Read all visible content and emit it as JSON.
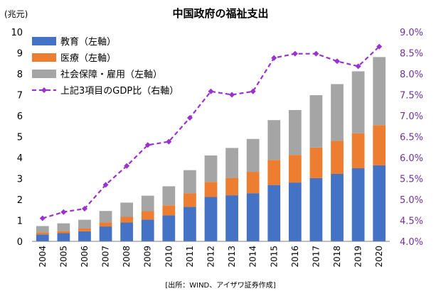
{
  "chart_data": {
    "type": "bar",
    "stacked": true,
    "title": "中国政府の福祉支出",
    "yunit_left": "(兆元)",
    "source": "[出所：WIND、アイザワ証券作成]",
    "categories": [
      "2004",
      "2005",
      "2006",
      "2007",
      "2008",
      "2009",
      "2010",
      "2011",
      "2012",
      "2013",
      "2014",
      "2015",
      "2016",
      "2017",
      "2018",
      "2019",
      "2020"
    ],
    "series": [
      {
        "name": "教育（左軸）",
        "color": "#4472C4",
        "axis": "left",
        "values": [
          0.33,
          0.39,
          0.48,
          0.71,
          0.9,
          1.04,
          1.24,
          1.65,
          2.12,
          2.2,
          2.3,
          2.69,
          2.81,
          3.02,
          3.22,
          3.49,
          3.63
        ]
      },
      {
        "name": "医療（左軸）",
        "color": "#ED7D31",
        "axis": "left",
        "values": [
          0.1,
          0.11,
          0.13,
          0.2,
          0.27,
          0.4,
          0.48,
          0.64,
          0.72,
          0.83,
          1.02,
          1.2,
          1.32,
          1.46,
          1.58,
          1.67,
          1.92
        ]
      },
      {
        "name": "社会保障・雇用（左軸）",
        "color": "#A5A5A5",
        "axis": "left",
        "values": [
          0.3,
          0.36,
          0.42,
          0.54,
          0.68,
          0.74,
          0.91,
          1.11,
          1.26,
          1.43,
          1.57,
          1.9,
          2.14,
          2.5,
          2.71,
          2.96,
          3.25
        ]
      },
      {
        "name": "上記3項目のGDP比（右軸）",
        "color": "#9933CC",
        "type": "line",
        "axis": "right",
        "values": [
          4.55,
          4.7,
          4.78,
          5.35,
          5.8,
          6.3,
          6.38,
          6.95,
          7.58,
          7.5,
          7.58,
          8.38,
          8.48,
          8.48,
          8.3,
          8.18,
          8.65
        ]
      }
    ],
    "ylim_left": [
      0,
      10
    ],
    "yticks_left": [
      "0",
      "1",
      "2",
      "3",
      "4",
      "5",
      "6",
      "7",
      "8",
      "9",
      "10"
    ],
    "ylim_right": [
      4.0,
      9.0
    ],
    "yticks_right": [
      "4.0%",
      "4.5%",
      "5.0%",
      "5.5%",
      "6.0%",
      "6.5%",
      "7.0%",
      "7.5%",
      "8.0%",
      "8.5%",
      "9.0%"
    ],
    "legend_position": "top-left",
    "grid": false
  }
}
